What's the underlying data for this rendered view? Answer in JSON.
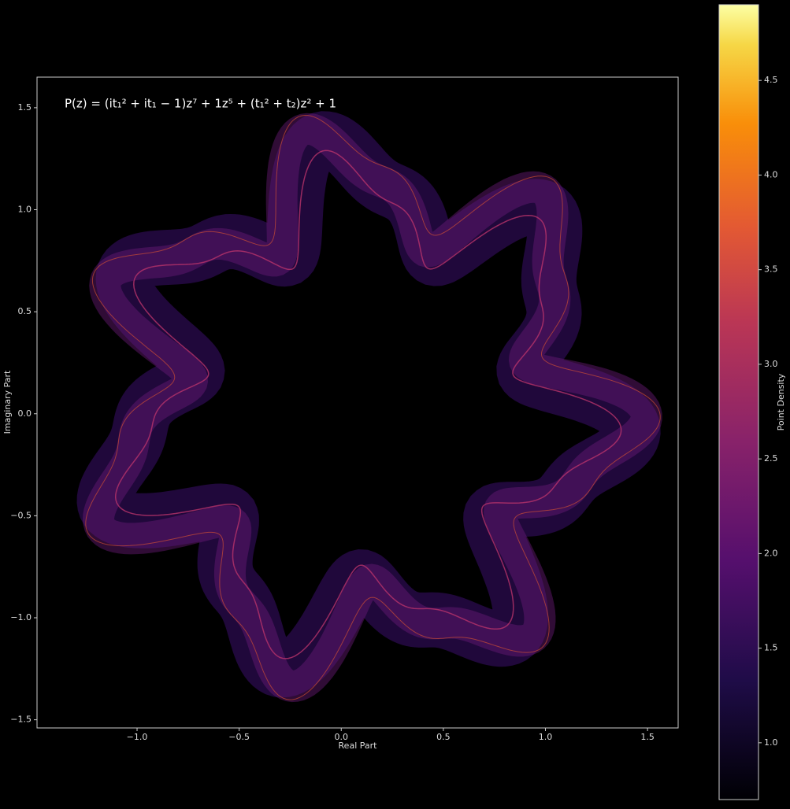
{
  "chart_data": {
    "type": "density",
    "annotation": "P(z) = (it₁² + it₁ − 1)z⁷ + 1z⁵ + (t₁² + t₂)z² + 1",
    "x_label": "Real Part",
    "y_label": "Imaginary Part",
    "colorbar_label": "Point Density",
    "xlim": [
      -1.49,
      1.65
    ],
    "ylim": [
      -1.54,
      1.65
    ],
    "xticks": [
      {
        "value": -1,
        "label": "−1.0"
      },
      {
        "value": -0.5,
        "label": "−0.5"
      },
      {
        "value": 0,
        "label": "0.0"
      },
      0.5,
      {
        "value": 1,
        "label": "1.0"
      },
      1.5
    ],
    "yticks": [
      {
        "value": -1.5,
        "label": "−1.5"
      },
      {
        "value": -1,
        "label": "−1.0"
      },
      {
        "value": -0.5,
        "label": "−0.5"
      },
      {
        "value": 0,
        "label": "0.0"
      },
      0.5,
      {
        "value": 1,
        "label": "1.0"
      },
      1.5
    ],
    "clim": [
      0.7,
      4.9
    ],
    "cticks": [
      {
        "value": 1,
        "label": "1.0"
      },
      1.5,
      {
        "value": 2,
        "label": "2.0"
      },
      2.5,
      {
        "value": 3,
        "label": "3.0"
      },
      3.5,
      {
        "value": 4,
        "label": "4.0"
      },
      4.5
    ]
  }
}
